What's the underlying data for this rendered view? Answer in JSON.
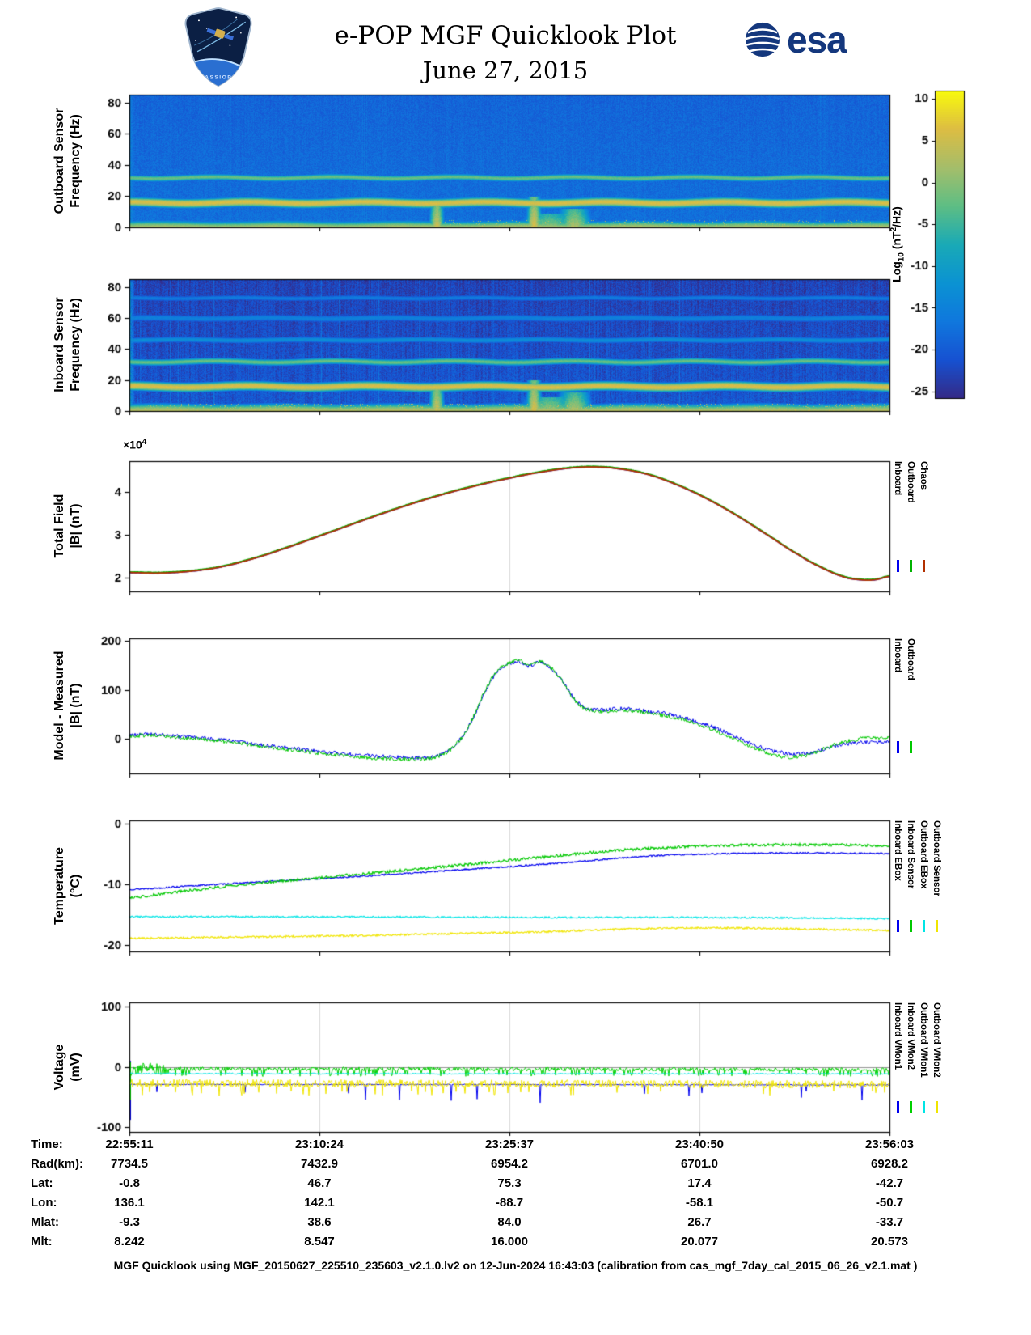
{
  "header": {
    "title": "e-POP MGF Quicklook Plot",
    "date": "June 27, 2015",
    "esa_text": "esa",
    "mission_patch_text": "CASSIOPE"
  },
  "colorbar": {
    "label": {
      "prefix": "Log",
      "sub": "10",
      "mid": " (nT",
      "sup": "2",
      "suffix": "/Hz)"
    },
    "ticks": [
      10,
      5,
      0,
      -5,
      -10,
      -15,
      -20,
      -25
    ],
    "vmin": -25.8,
    "vmax": 11,
    "colormap": [
      "#352a87",
      "#1752d2",
      "#1078de",
      "#0b93d3",
      "#1aaab7",
      "#5ebe85",
      "#a5be6b",
      "#ddbd44",
      "#f9fb0e"
    ]
  },
  "chart_data": [
    {
      "id": "outboard_spectrogram",
      "type": "heatmap",
      "ylabel_lines": [
        "Outboard Sensor",
        "Frequency (Hz)"
      ],
      "ylim": [
        0,
        85
      ],
      "yticks": [
        0,
        20,
        40,
        60,
        80
      ],
      "time_ticks": [
        "22:55:11",
        "23:10:24",
        "23:25:37",
        "23:40:50",
        "23:56:03"
      ],
      "value_scale": "Log10 (nT^2/Hz)",
      "background_level": -17.5,
      "noise_amp": 1.8,
      "stripe_amp": 0.5,
      "top_darken": 1.5,
      "left_edge_boost": 5,
      "persistent_lines": [
        {
          "freq": 0,
          "halfwidth": 2.0,
          "level": 2,
          "wobble": 0.3
        },
        {
          "freq": 16,
          "halfwidth": 1.3,
          "level": 6,
          "wobble": 0.5
        },
        {
          "freq": 32,
          "halfwidth": 1.0,
          "level": -2,
          "wobble": 0.5
        }
      ],
      "bursts": [
        {
          "x": 0.404,
          "width": 0.005,
          "fmax": 18,
          "level": 5
        },
        {
          "x": 0.532,
          "width": 0.005,
          "fmax": 20,
          "level": 6
        },
        {
          "x": 0.552,
          "width": 0.02,
          "fmax": 9,
          "level": 1
        },
        {
          "x": 0.585,
          "width": 0.012,
          "fmax": 12,
          "level": 3
        }
      ],
      "speckle": {
        "from": 0.4,
        "to": 1.0,
        "fmax": 5,
        "density": 0.05,
        "level": 2
      },
      "seed": 42
    },
    {
      "id": "inboard_spectrogram",
      "type": "heatmap",
      "ylabel_lines": [
        "Inboard Sensor",
        "Frequency (Hz)"
      ],
      "ylim": [
        0,
        85
      ],
      "yticks": [
        0,
        20,
        40,
        60,
        80
      ],
      "time_ticks": [
        "22:55:11",
        "23:10:24",
        "23:25:37",
        "23:40:50",
        "23:56:03"
      ],
      "value_scale": "Log10 (nT^2/Hz)",
      "background_level": -20.5,
      "noise_amp": 2.2,
      "stripe_amp": 1.4,
      "top_darken": 2.5,
      "left_edge_boost": 14,
      "persistent_lines": [
        {
          "freq": 0,
          "halfwidth": 2.2,
          "level": 3,
          "wobble": 0.3
        },
        {
          "freq": 16,
          "halfwidth": 1.3,
          "level": 6,
          "wobble": 0.5
        },
        {
          "freq": 32,
          "halfwidth": 1.0,
          "level": -2,
          "wobble": 0.5
        },
        {
          "freq": 46,
          "halfwidth": 1.2,
          "level": -13,
          "wobble": 0.3
        },
        {
          "freq": 60,
          "halfwidth": 1.5,
          "level": -15,
          "wobble": 0.3
        },
        {
          "freq": 73,
          "halfwidth": 1.2,
          "level": -16,
          "wobble": 0.3
        }
      ],
      "bursts": [
        {
          "x": 0.404,
          "width": 0.005,
          "fmax": 18,
          "level": 5
        },
        {
          "x": 0.532,
          "width": 0.005,
          "fmax": 20,
          "level": 6
        },
        {
          "x": 0.552,
          "width": 0.02,
          "fmax": 9,
          "level": 2
        },
        {
          "x": 0.585,
          "width": 0.012,
          "fmax": 12,
          "level": 3
        }
      ],
      "speckle": {
        "from": 0.02,
        "to": 1.0,
        "fmax": 5,
        "density": 0.1,
        "level": 3
      },
      "seed": 77
    },
    {
      "id": "total_field",
      "type": "line",
      "ylabel_lines": [
        "Total Field",
        "|B| (nT)"
      ],
      "scale_label": {
        "times": "×10",
        "exp": "4"
      },
      "units": "1e4 nT",
      "ylim": [
        1.68,
        4.72
      ],
      "yticks": [
        2,
        3,
        4
      ],
      "grid_x": [
        0.5
      ],
      "smooth": true,
      "base_points": [
        [
          0,
          2.12
        ],
        [
          0.04,
          2.11
        ],
        [
          0.08,
          2.15
        ],
        [
          0.12,
          2.25
        ],
        [
          0.16,
          2.43
        ],
        [
          0.2,
          2.66
        ],
        [
          0.25,
          2.97
        ],
        [
          0.3,
          3.29
        ],
        [
          0.35,
          3.6
        ],
        [
          0.4,
          3.88
        ],
        [
          0.45,
          4.12
        ],
        [
          0.5,
          4.32
        ],
        [
          0.54,
          4.46
        ],
        [
          0.58,
          4.56
        ],
        [
          0.61,
          4.585
        ],
        [
          0.64,
          4.55
        ],
        [
          0.68,
          4.42
        ],
        [
          0.72,
          4.17
        ],
        [
          0.76,
          3.84
        ],
        [
          0.8,
          3.44
        ],
        [
          0.84,
          2.99
        ],
        [
          0.88,
          2.54
        ],
        [
          0.91,
          2.24
        ],
        [
          0.94,
          2.02
        ],
        [
          0.96,
          1.955
        ],
        [
          0.98,
          1.95
        ],
        [
          1,
          2.03
        ]
      ],
      "series": [
        {
          "name": "Inboard",
          "color": "#0000ee",
          "offset": 0,
          "noise": 0.004,
          "width": 1.6
        },
        {
          "name": "Outboard",
          "color": "#00b200",
          "offset": 0.018,
          "noise": 0.004,
          "width": 1.6
        },
        {
          "name": "Chaos",
          "color": "#b23000",
          "offset": 0,
          "noise": 0,
          "width": 1.8
        }
      ],
      "seed": 5
    },
    {
      "id": "model_minus_measured",
      "type": "line",
      "ylabel_lines": [
        "Model - Measured",
        "|B| (nT)"
      ],
      "units": "nT",
      "ylim": [
        -70,
        205
      ],
      "yticks": [
        0,
        100,
        200
      ],
      "grid_x": [
        0.5
      ],
      "smooth": true,
      "base_points": [
        [
          0,
          8
        ],
        [
          0.03,
          10
        ],
        [
          0.06,
          6
        ],
        [
          0.1,
          2
        ],
        [
          0.14,
          -5
        ],
        [
          0.18,
          -13
        ],
        [
          0.22,
          -20
        ],
        [
          0.26,
          -27
        ],
        [
          0.3,
          -32
        ],
        [
          0.34,
          -36
        ],
        [
          0.38,
          -38
        ],
        [
          0.4,
          -36
        ],
        [
          0.42,
          -24
        ],
        [
          0.44,
          8
        ],
        [
          0.455,
          52
        ],
        [
          0.47,
          103
        ],
        [
          0.485,
          138
        ],
        [
          0.5,
          152
        ],
        [
          0.512,
          158
        ],
        [
          0.525,
          149
        ],
        [
          0.54,
          156
        ],
        [
          0.553,
          146
        ],
        [
          0.57,
          118
        ],
        [
          0.585,
          82
        ],
        [
          0.6,
          64
        ],
        [
          0.62,
          59
        ],
        [
          0.65,
          62
        ],
        [
          0.68,
          57
        ],
        [
          0.72,
          47
        ],
        [
          0.76,
          29
        ],
        [
          0.8,
          4
        ],
        [
          0.83,
          -16
        ],
        [
          0.86,
          -28
        ],
        [
          0.88,
          -30
        ],
        [
          0.9,
          -26
        ],
        [
          0.93,
          -14
        ],
        [
          0.96,
          -7
        ],
        [
          1,
          -6
        ]
      ],
      "series": [
        {
          "name": "Inboard",
          "color": "#0000ee",
          "noise": 4,
          "width": 1
        },
        {
          "name": "Outboard",
          "color": "#00c800",
          "noise": 4,
          "width": 1,
          "offset_points": [
            [
              0,
              -2
            ],
            [
              0.2,
              -3
            ],
            [
              0.35,
              -4
            ],
            [
              0.5,
              3
            ],
            [
              0.6,
              -2
            ],
            [
              0.7,
              -4
            ],
            [
              0.8,
              -6
            ],
            [
              0.87,
              -7
            ],
            [
              0.93,
              4
            ],
            [
              1,
              10
            ]
          ]
        }
      ],
      "seed": 9
    },
    {
      "id": "temperature",
      "type": "line",
      "ylabel_lines": [
        "Temperature",
        "(°C)"
      ],
      "units": "degC",
      "ylim": [
        -21,
        0.5
      ],
      "yticks": [
        -20,
        -10,
        0
      ],
      "grid_x": [
        0.5
      ],
      "smooth": true,
      "series": [
        {
          "name": "Inboard EBox",
          "color": "#0000ee",
          "noise": 0.12,
          "width": 1.2,
          "points": [
            [
              0,
              -10.8
            ],
            [
              0.1,
              -10.1
            ],
            [
              0.2,
              -9.4
            ],
            [
              0.3,
              -8.7
            ],
            [
              0.4,
              -7.9
            ],
            [
              0.5,
              -7.1
            ],
            [
              0.55,
              -6.65
            ],
            [
              0.6,
              -6.15
            ],
            [
              0.65,
              -5.65
            ],
            [
              0.7,
              -5.25
            ],
            [
              0.75,
              -5.05
            ],
            [
              0.8,
              -4.92
            ],
            [
              0.85,
              -4.86
            ],
            [
              0.9,
              -4.85
            ],
            [
              0.95,
              -4.9
            ],
            [
              1,
              -4.95
            ]
          ]
        },
        {
          "name": "Inboard Sensor",
          "color": "#00c800",
          "noise": 0.22,
          "width": 1.2,
          "points": [
            [
              0,
              -12.2
            ],
            [
              0.05,
              -11.4
            ],
            [
              0.1,
              -10.7
            ],
            [
              0.15,
              -10.05
            ],
            [
              0.2,
              -9.45
            ],
            [
              0.25,
              -8.9
            ],
            [
              0.3,
              -8.35
            ],
            [
              0.35,
              -7.8
            ],
            [
              0.4,
              -7.25
            ],
            [
              0.45,
              -6.65
            ],
            [
              0.5,
              -6.05
            ],
            [
              0.55,
              -5.45
            ],
            [
              0.6,
              -4.85
            ],
            [
              0.65,
              -4.35
            ],
            [
              0.7,
              -3.98
            ],
            [
              0.75,
              -3.72
            ],
            [
              0.8,
              -3.56
            ],
            [
              0.85,
              -3.5
            ],
            [
              0.9,
              -3.5
            ],
            [
              0.95,
              -3.55
            ],
            [
              1,
              -3.62
            ]
          ]
        },
        {
          "name": "Outboard EBox",
          "color": "#00e5e5",
          "noise": 0.13,
          "width": 1.2,
          "points": [
            [
              0,
              -15.3
            ],
            [
              0.2,
              -15.3
            ],
            [
              0.4,
              -15.35
            ],
            [
              0.5,
              -15.4
            ],
            [
              0.6,
              -15.42
            ],
            [
              0.7,
              -15.4
            ],
            [
              0.8,
              -15.45
            ],
            [
              0.9,
              -15.5
            ],
            [
              1,
              -15.62
            ]
          ]
        },
        {
          "name": "Outboard Sensor",
          "color": "#f0e500",
          "noise": 0.16,
          "width": 1.2,
          "points": [
            [
              0,
              -18.85
            ],
            [
              0.1,
              -18.7
            ],
            [
              0.2,
              -18.55
            ],
            [
              0.3,
              -18.4
            ],
            [
              0.4,
              -18.15
            ],
            [
              0.5,
              -17.9
            ],
            [
              0.55,
              -17.75
            ],
            [
              0.6,
              -17.55
            ],
            [
              0.65,
              -17.35
            ],
            [
              0.7,
              -17.2
            ],
            [
              0.75,
              -17.1
            ],
            [
              0.8,
              -17.15
            ],
            [
              0.85,
              -17.25
            ],
            [
              0.9,
              -17.35
            ],
            [
              0.95,
              -17.45
            ],
            [
              1,
              -17.55
            ]
          ]
        }
      ],
      "seed": 13
    },
    {
      "id": "voltage",
      "type": "line",
      "ylabel_lines": [
        "Voltage",
        "(mV)"
      ],
      "units": "mV",
      "ylim": [
        -108,
        107
      ],
      "yticks": [
        -100,
        0,
        100
      ],
      "grid_x": [
        0.25,
        0.5,
        0.75
      ],
      "zero_line": true,
      "smooth": false,
      "series": [
        {
          "name": "Inboard VMon1",
          "color": "#0000ee",
          "noise": 0.8,
          "width": 1,
          "points": [
            [
              0,
              -29
            ],
            [
              1,
              -30
            ]
          ],
          "spikes": {
            "prob": 0.012,
            "min": -40,
            "max": -60
          },
          "init_spike": {
            "top": 10,
            "bottom": -88
          }
        },
        {
          "name": "Inboard VMon2",
          "color": "#00d000",
          "noise": 3.2,
          "width": 1,
          "points": [
            [
              0,
              -3
            ],
            [
              1,
              -4.5
            ]
          ],
          "spikes": {
            "prob": 0.12,
            "min": -10,
            "max": -16
          },
          "left_noise_boost": 3,
          "init_spike": {
            "top": 8,
            "bottom": -55
          }
        },
        {
          "name": "Outboard VMon1",
          "color": "#00e5e5",
          "noise": 1.2,
          "width": 1,
          "points": [
            [
              0,
              -11
            ],
            [
              1,
              -11.5
            ]
          ]
        },
        {
          "name": "Outboard VMon2",
          "color": "#f0e500",
          "noise": 6.5,
          "width": 1,
          "points": [
            [
              0,
              -27
            ],
            [
              1,
              -29
            ]
          ],
          "spikes": {
            "prob": 0.05,
            "min": -40,
            "max": -48
          }
        }
      ],
      "seed": 21
    }
  ],
  "ephemeris": {
    "rows": [
      {
        "label": "Time:",
        "values": [
          "22:55:11",
          "23:10:24",
          "23:25:37",
          "23:40:50",
          "23:56:03"
        ]
      },
      {
        "label": "Rad(km):",
        "values": [
          "7734.5",
          "7432.9",
          "6954.2",
          "6701.0",
          "6928.2"
        ]
      },
      {
        "label": "Lat:",
        "values": [
          "-0.8",
          "46.7",
          "75.3",
          "17.4",
          "-42.7"
        ]
      },
      {
        "label": "Lon:",
        "values": [
          "136.1",
          "142.1",
          "-88.7",
          "-58.1",
          "-50.7"
        ]
      },
      {
        "label": "Mlat:",
        "values": [
          "-9.3",
          "38.6",
          "84.0",
          "26.7",
          "-33.7"
        ]
      },
      {
        "label": "Mlt:",
        "values": [
          "8.242",
          "8.547",
          "16.000",
          "20.077",
          "20.573"
        ]
      }
    ]
  },
  "footer": "MGF Quicklook using MGF_20150627_225510_235603_v2.1.0.lv2 on 12-Jun-2024 16:43:03 (calibration from cas_mgf_7day_cal_2015_06_26_v2.1.mat )"
}
